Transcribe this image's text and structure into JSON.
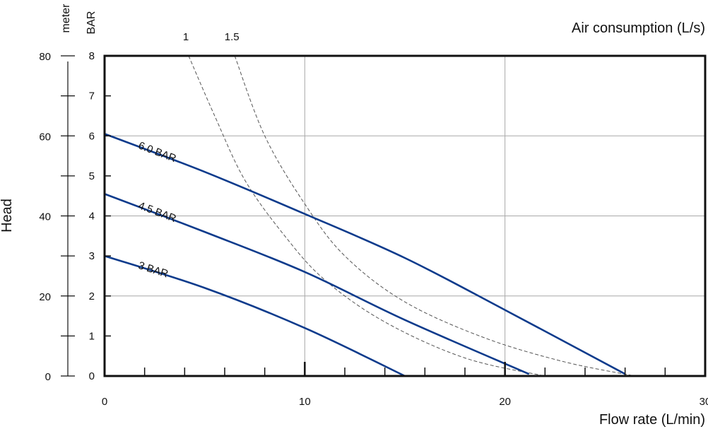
{
  "chart_data": {
    "type": "line",
    "title": "",
    "xlabel": "Flow rate (L/min)",
    "ylabel": "Head",
    "top_axis_label": "Air consumption (L/s)",
    "left_unit_label": "meter",
    "inner_unit_label": "BAR",
    "xlim": [
      0,
      30
    ],
    "x_ticks": [
      0,
      10,
      20,
      30
    ],
    "ylim_bar": [
      0,
      8
    ],
    "bar_ticks": [
      0,
      1,
      2,
      3,
      4,
      5,
      6,
      7,
      8
    ],
    "ylim_meter": [
      0,
      80
    ],
    "meter_ticks": [
      0,
      20,
      40,
      60,
      80
    ],
    "grid": true,
    "colors": {
      "series": "#0d3b8c",
      "air": "#555555",
      "frame": "#111111"
    },
    "series": [
      {
        "name": "6.0 BAR",
        "x": [
          0,
          5,
          10,
          15,
          20,
          26
        ],
        "y": [
          6.05,
          5.1,
          4.05,
          2.95,
          1.65,
          0.05
        ]
      },
      {
        "name": "4.5 BAR",
        "x": [
          0,
          5,
          10,
          15,
          21.2
        ],
        "y": [
          4.55,
          3.6,
          2.6,
          1.4,
          0.05
        ]
      },
      {
        "name": "3 BAR",
        "x": [
          0,
          5,
          10,
          15
        ],
        "y": [
          3.0,
          2.2,
          1.2,
          0.0
        ]
      }
    ],
    "air_consumption": [
      {
        "name": "1",
        "x": [
          4.2,
          5.5,
          7,
          9,
          11,
          14,
          18,
          22
        ],
        "y": [
          8,
          6.5,
          4.9,
          3.5,
          2.4,
          1.35,
          0.45,
          0
        ]
      },
      {
        "name": "1.5",
        "x": [
          6.5,
          8,
          10,
          12,
          15,
          19,
          23,
          26.5
        ],
        "y": [
          8,
          6.0,
          4.3,
          3.0,
          1.85,
          0.95,
          0.35,
          0
        ]
      }
    ]
  }
}
